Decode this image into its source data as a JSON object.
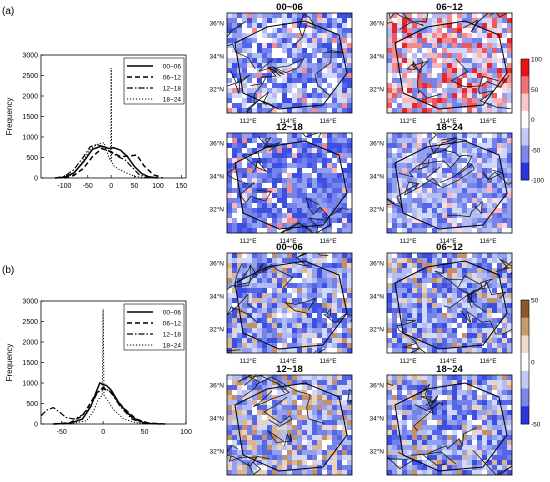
{
  "chart_data": [
    {
      "type": "line",
      "panel_label": "(a)",
      "ylabel": "Frequency",
      "xlim": [
        -150,
        160
      ],
      "ylim": [
        0,
        3000
      ],
      "x_ticks": [
        -100,
        -50,
        0,
        50,
        100,
        150
      ],
      "y_ticks": [
        0,
        500,
        1000,
        1500,
        2000,
        2500,
        3000
      ],
      "legend_position": "top-right",
      "series": [
        {
          "name": "00~06",
          "style": "solid",
          "x": [
            -120,
            -100,
            -80,
            -60,
            -40,
            -20,
            -5,
            5,
            20,
            35,
            50,
            65,
            80,
            100
          ],
          "y": [
            0,
            20,
            120,
            380,
            700,
            780,
            720,
            740,
            680,
            520,
            280,
            110,
            30,
            0
          ]
        },
        {
          "name": "06~12",
          "style": "dashed",
          "x": [
            -100,
            -80,
            -60,
            -40,
            -20,
            0,
            20,
            40,
            55,
            70,
            90,
            110
          ],
          "y": [
            0,
            60,
            230,
            520,
            720,
            640,
            520,
            540,
            560,
            300,
            80,
            0
          ]
        },
        {
          "name": "12~18",
          "style": "dashdot",
          "x": [
            -120,
            -100,
            -80,
            -60,
            -45,
            -30,
            -15,
            0,
            15,
            30,
            45,
            60,
            80
          ],
          "y": [
            0,
            40,
            200,
            500,
            760,
            820,
            740,
            620,
            520,
            440,
            260,
            80,
            0
          ]
        },
        {
          "name": "18~24",
          "style": "dotted",
          "x": [
            -100,
            -80,
            -60,
            -45,
            -30,
            -15,
            -5,
            -1,
            0,
            1,
            5,
            15,
            30,
            50,
            80
          ],
          "y": [
            0,
            100,
            420,
            700,
            820,
            860,
            500,
            400,
            2680,
            400,
            300,
            220,
            140,
            40,
            0
          ]
        }
      ]
    },
    {
      "type": "line",
      "panel_label": "(b)",
      "ylabel": "Frequency",
      "xlim": [
        -75,
        100
      ],
      "ylim": [
        0,
        3000
      ],
      "x_ticks": [
        -50,
        0,
        50,
        100
      ],
      "y_ticks": [
        0,
        500,
        1000,
        1500,
        2000,
        2500,
        3000
      ],
      "legend_position": "top-right",
      "series": [
        {
          "name": "00~06",
          "style": "solid",
          "x": [
            -60,
            -40,
            -25,
            -15,
            -8,
            -4,
            0,
            4,
            10,
            20,
            35,
            50,
            70
          ],
          "y": [
            0,
            20,
            120,
            420,
            800,
            1000,
            960,
            940,
            820,
            480,
            160,
            20,
            0
          ]
        },
        {
          "name": "06~12",
          "style": "dashed",
          "x": [
            -60,
            -40,
            -25,
            -15,
            -8,
            0,
            8,
            15,
            25,
            40,
            55,
            75
          ],
          "y": [
            0,
            30,
            200,
            520,
            760,
            860,
            800,
            620,
            380,
            120,
            20,
            0
          ]
        },
        {
          "name": "12~18",
          "style": "dashdot",
          "x": [
            -75,
            -68,
            -60,
            -52,
            -45,
            -35,
            -25,
            -15,
            -8,
            0,
            10,
            20,
            35,
            50
          ],
          "y": [
            200,
            340,
            400,
            280,
            160,
            120,
            220,
            440,
            720,
            900,
            760,
            440,
            120,
            0
          ]
        },
        {
          "name": "18~24",
          "style": "dotted",
          "x": [
            -40,
            -20,
            -12,
            -6,
            -1,
            0,
            1,
            6,
            12,
            25,
            40,
            60
          ],
          "y": [
            0,
            80,
            300,
            600,
            700,
            2800,
            700,
            560,
            360,
            120,
            30,
            0
          ]
        }
      ]
    }
  ],
  "maps": {
    "panels": [
      {
        "id": "a-00-06",
        "title": "00~06"
      },
      {
        "id": "a-06-12",
        "title": "06~12"
      },
      {
        "id": "a-12-18",
        "title": "12~18"
      },
      {
        "id": "a-18-24",
        "title": "18~24"
      },
      {
        "id": "b-00-06",
        "title": "00~06"
      },
      {
        "id": "b-06-12",
        "title": "06~12"
      },
      {
        "id": "b-12-18",
        "title": "12~18"
      },
      {
        "id": "b-18-24",
        "title": "18~24"
      }
    ],
    "lat_labels": [
      "36°N",
      "34°N",
      "32°N"
    ],
    "lon_labels": [
      "112°E",
      "114°E",
      "116°E"
    ],
    "colorbars": [
      {
        "panel": "(a)",
        "ticks": [
          "100",
          "50",
          "0",
          "-50",
          "-100"
        ],
        "colors_top_to_bottom": [
          "#e8141c",
          "#f2727a",
          "#f9c6ca",
          "#ffffff",
          "#c3c8f4",
          "#7e86ec",
          "#2a34e0"
        ]
      },
      {
        "panel": "(b)",
        "ticks": [
          "50",
          "0",
          "-50"
        ],
        "colors_top_to_bottom": [
          "#8b5a2b",
          "#c59a6e",
          "#ecdcc8",
          "#ffffff",
          "#c3c8f4",
          "#7e86ec",
          "#2a34e0"
        ]
      }
    ],
    "colors": {
      "red_shade": "#f08a90",
      "blue_shade": "#5a6fe6",
      "base_blue": "#8ea0ee",
      "brown_shade": "#d9b59a"
    }
  }
}
